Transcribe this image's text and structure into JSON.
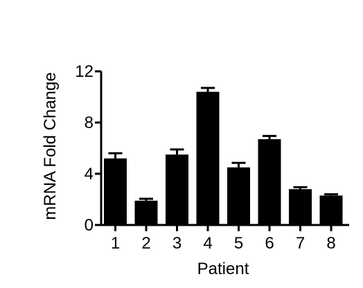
{
  "chart_data": {
    "type": "bar",
    "categories": [
      "1",
      "2",
      "3",
      "4",
      "5",
      "6",
      "7",
      "8"
    ],
    "values": [
      5.2,
      1.9,
      5.5,
      10.4,
      4.5,
      6.7,
      2.8,
      2.3
    ],
    "errors": [
      0.4,
      0.15,
      0.4,
      0.3,
      0.35,
      0.25,
      0.15,
      0.1
    ],
    "title": "",
    "xlabel": "Patient",
    "ylabel": "mRNA Fold Change",
    "ylim": [
      0,
      12
    ],
    "yticks": [
      0,
      4,
      8,
      12
    ],
    "grid": false,
    "bar_color": "#000000"
  }
}
